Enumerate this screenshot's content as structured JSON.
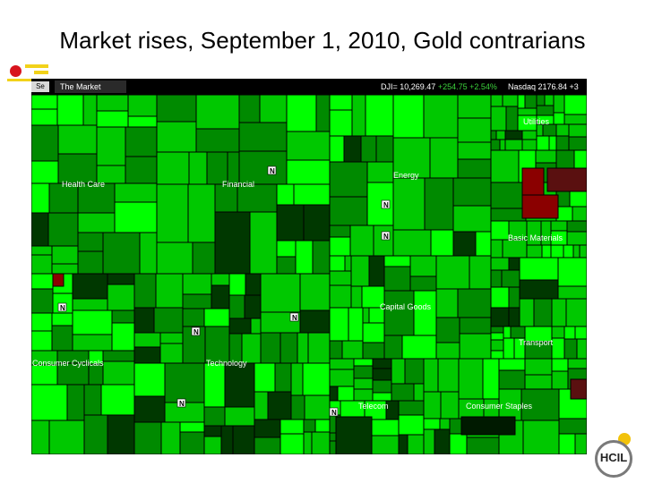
{
  "slide": {
    "title": "Market rises, September 1, 2010, Gold contrarians"
  },
  "topbar": {
    "button": "Se",
    "tab": "The Market",
    "dji_label": "DJI= 10,269.47",
    "dji_change": "+254.75 +2.54%",
    "nasdaq_label": "Nasdaq 2176.84 +3"
  },
  "sectors": {
    "health_care": "Health Care",
    "financial": "Financial",
    "energy": "Energy",
    "utilities": "Utilities",
    "basic_materials": "Basic Materials",
    "consumer_cyclicals": "Consumer Cyclicals",
    "capital_goods": "Capital Goods",
    "technology": "Technology",
    "transport": "Transport",
    "telecom": "Telecom",
    "consumer_staples": "Consumer Staples"
  },
  "badge_text": "N",
  "logo": {
    "text": "HCIL"
  },
  "colors": {
    "strong_gain": "#00ff00",
    "gain": "#00c800",
    "mild_gain": "#008a00",
    "flat": "#003800",
    "loss": "#8b0000",
    "border": "#000000"
  }
}
